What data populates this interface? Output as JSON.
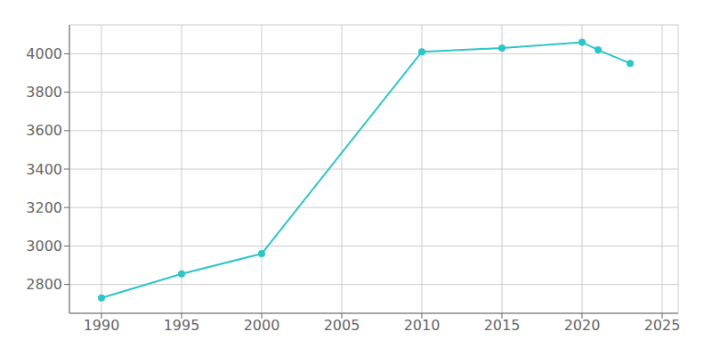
{
  "chart_data": {
    "type": "line",
    "x": [
      1990,
      1995,
      2000,
      2010,
      2015,
      2020,
      2021,
      2023
    ],
    "values": [
      2730,
      2855,
      2960,
      4010,
      4030,
      4060,
      4020,
      3950
    ],
    "color": "#2DC5C5",
    "marker": "circle",
    "xlim": [
      1988,
      2026
    ],
    "ylim": [
      2650,
      4150
    ],
    "xticks": [
      1990,
      1995,
      2000,
      2005,
      2010,
      2015,
      2020,
      2025
    ],
    "yticks": [
      2800,
      3000,
      3200,
      3400,
      3600,
      3800,
      4000
    ],
    "grid": true
  }
}
